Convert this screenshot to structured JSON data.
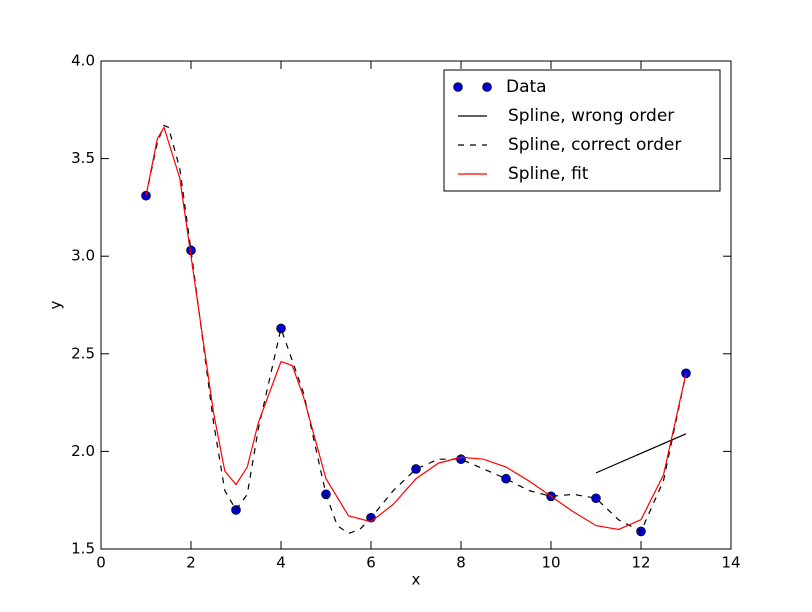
{
  "chart_data": {
    "type": "line",
    "x_label": "x",
    "y_label": "y",
    "xlim": [
      0,
      14
    ],
    "xticks": [
      0,
      2,
      4,
      6,
      8,
      10,
      12,
      14
    ],
    "ylim": [
      1.5,
      4.0
    ],
    "yticks": [
      1.5,
      {
        "value": 2.0,
        "label": "2.0"
      },
      2.5,
      {
        "value": 3.0,
        "label": "3.0"
      },
      3.5,
      {
        "value": 4.0,
        "label": "4.0"
      }
    ],
    "legend": "upper right",
    "series": [
      {
        "name": "Data",
        "color": "#0000cc",
        "style": "markers",
        "x": [
          1,
          2,
          3,
          4,
          5,
          6,
          7,
          8,
          9,
          10,
          11,
          12,
          13
        ],
        "values": [
          3.31,
          3.03,
          1.7,
          2.63,
          1.78,
          1.66,
          1.91,
          1.96,
          1.86,
          1.77,
          1.76,
          1.59,
          2.4
        ]
      },
      {
        "name": "Spline, wrong order",
        "color": "#000000",
        "style": "solid",
        "x": [
          11,
          13
        ],
        "values": [
          1.89,
          2.09
        ]
      },
      {
        "name": "Spline, correct order",
        "color": "#000000",
        "style": "dashed",
        "x": [
          1,
          1.25,
          1.4,
          1.5,
          1.75,
          2,
          2.5,
          2.75,
          3,
          3.25,
          3.5,
          4,
          4.5,
          5,
          5.25,
          5.5,
          5.75,
          6,
          6.5,
          7,
          7.5,
          8,
          8.5,
          9,
          9.5,
          10,
          10.5,
          11,
          11.5,
          12,
          12.5,
          13
        ],
        "values": [
          3.31,
          3.58,
          3.67,
          3.66,
          3.45,
          3.03,
          2.15,
          1.8,
          1.7,
          1.78,
          2.12,
          2.63,
          2.3,
          1.78,
          1.62,
          1.58,
          1.6,
          1.66,
          1.8,
          1.91,
          1.96,
          1.96,
          1.91,
          1.86,
          1.8,
          1.77,
          1.78,
          1.76,
          1.65,
          1.59,
          1.85,
          2.4
        ]
      },
      {
        "name": "Spline, fit",
        "color": "#ff0000",
        "style": "solid",
        "x": [
          1,
          1.25,
          1.4,
          1.75,
          2,
          2.5,
          2.75,
          3,
          3.25,
          3.5,
          4,
          4.25,
          4.5,
          5,
          5.5,
          6,
          6.5,
          7,
          7.5,
          8,
          8.5,
          9,
          9.5,
          10,
          10.5,
          11,
          11.5,
          12,
          12.5,
          13
        ],
        "values": [
          3.31,
          3.6,
          3.66,
          3.4,
          3.0,
          2.2,
          1.9,
          1.83,
          1.92,
          2.15,
          2.46,
          2.44,
          2.28,
          1.86,
          1.67,
          1.64,
          1.73,
          1.86,
          1.94,
          1.97,
          1.96,
          1.92,
          1.85,
          1.77,
          1.69,
          1.62,
          1.6,
          1.65,
          1.88,
          2.4
        ]
      }
    ]
  }
}
